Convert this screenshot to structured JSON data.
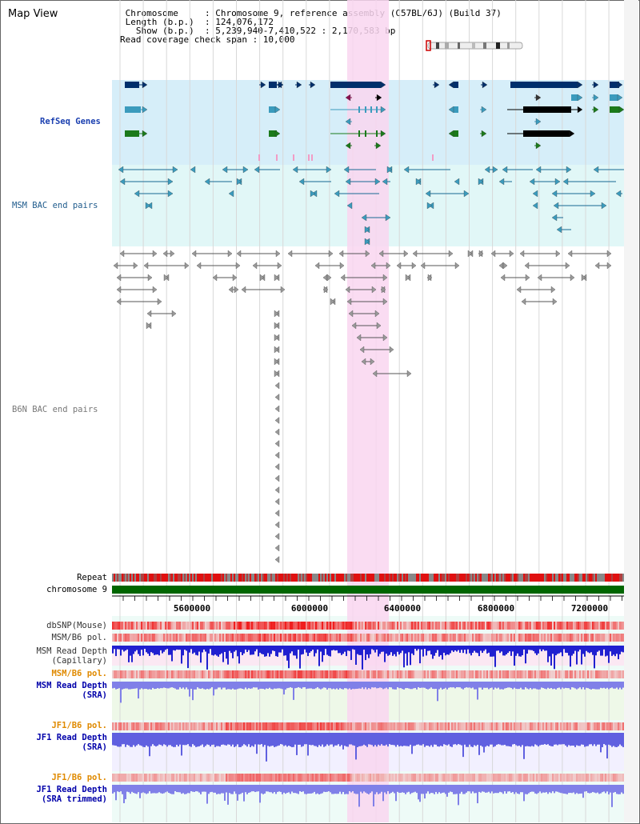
{
  "header": {
    "title": "Map View",
    "chromosome_line": " Chromosome     : Chromosome 9, reference assembly (C57BL/6J) (Build 37)",
    "length_line": " Length (b.p.)  : 124,076,172",
    "show_line": "   Show (b.p.)  : 5,239,940-7,410,522 : 2,170,583 bp",
    "coverage_line": "Read coverage check span : 10,000"
  },
  "tracks": {
    "refseq": "RefSeq Genes",
    "msm_bac": "MSM BAC end pairs",
    "b6n_bac": "B6N BAC end pairs",
    "repeat": "Repeat",
    "chromosome": "chromosome 9",
    "dbsnp": "dbSNP(Mouse)",
    "msm_b6_pol_1": "MSM/B6 pol.",
    "msm_depth_cap_1": "MSM Read Depth",
    "msm_depth_cap_2": "(Capillary)",
    "msm_b6_pol_2": "MSM/B6 pol.",
    "msm_depth_sra_1": "MSM Read Depth",
    "msm_depth_sra_2": "(SRA)",
    "jf1_b6_pol_1": "JF1/B6 pol.",
    "jf1_depth_sra_1": "JF1 Read Depth",
    "jf1_depth_sra_2": "(SRA)",
    "jf1_b6_pol_2": "JF1/B6 pol.",
    "jf1_depth_trim_1": "JF1 Read Depth",
    "jf1_depth_trim_2": "(SRA trimmed)"
  },
  "axis": {
    "ticks": [
      "5600000",
      "6000000",
      "6400000",
      "6800000",
      "7200000"
    ]
  },
  "colors": {
    "highlight": "#f9d6f0",
    "refseq_bg": "#d6eef9",
    "msm_bg": "#e1f7f7",
    "chromosome": "#006600",
    "navy": "#002f6c",
    "teal": "#3b9bbd",
    "green": "#1b7a1b",
    "msm_blue": "#186a93",
    "gray": "#777777",
    "label_blue": "#0000aa",
    "label_orange": "#e08a00",
    "label_msm": "#1f5b8c"
  }
}
